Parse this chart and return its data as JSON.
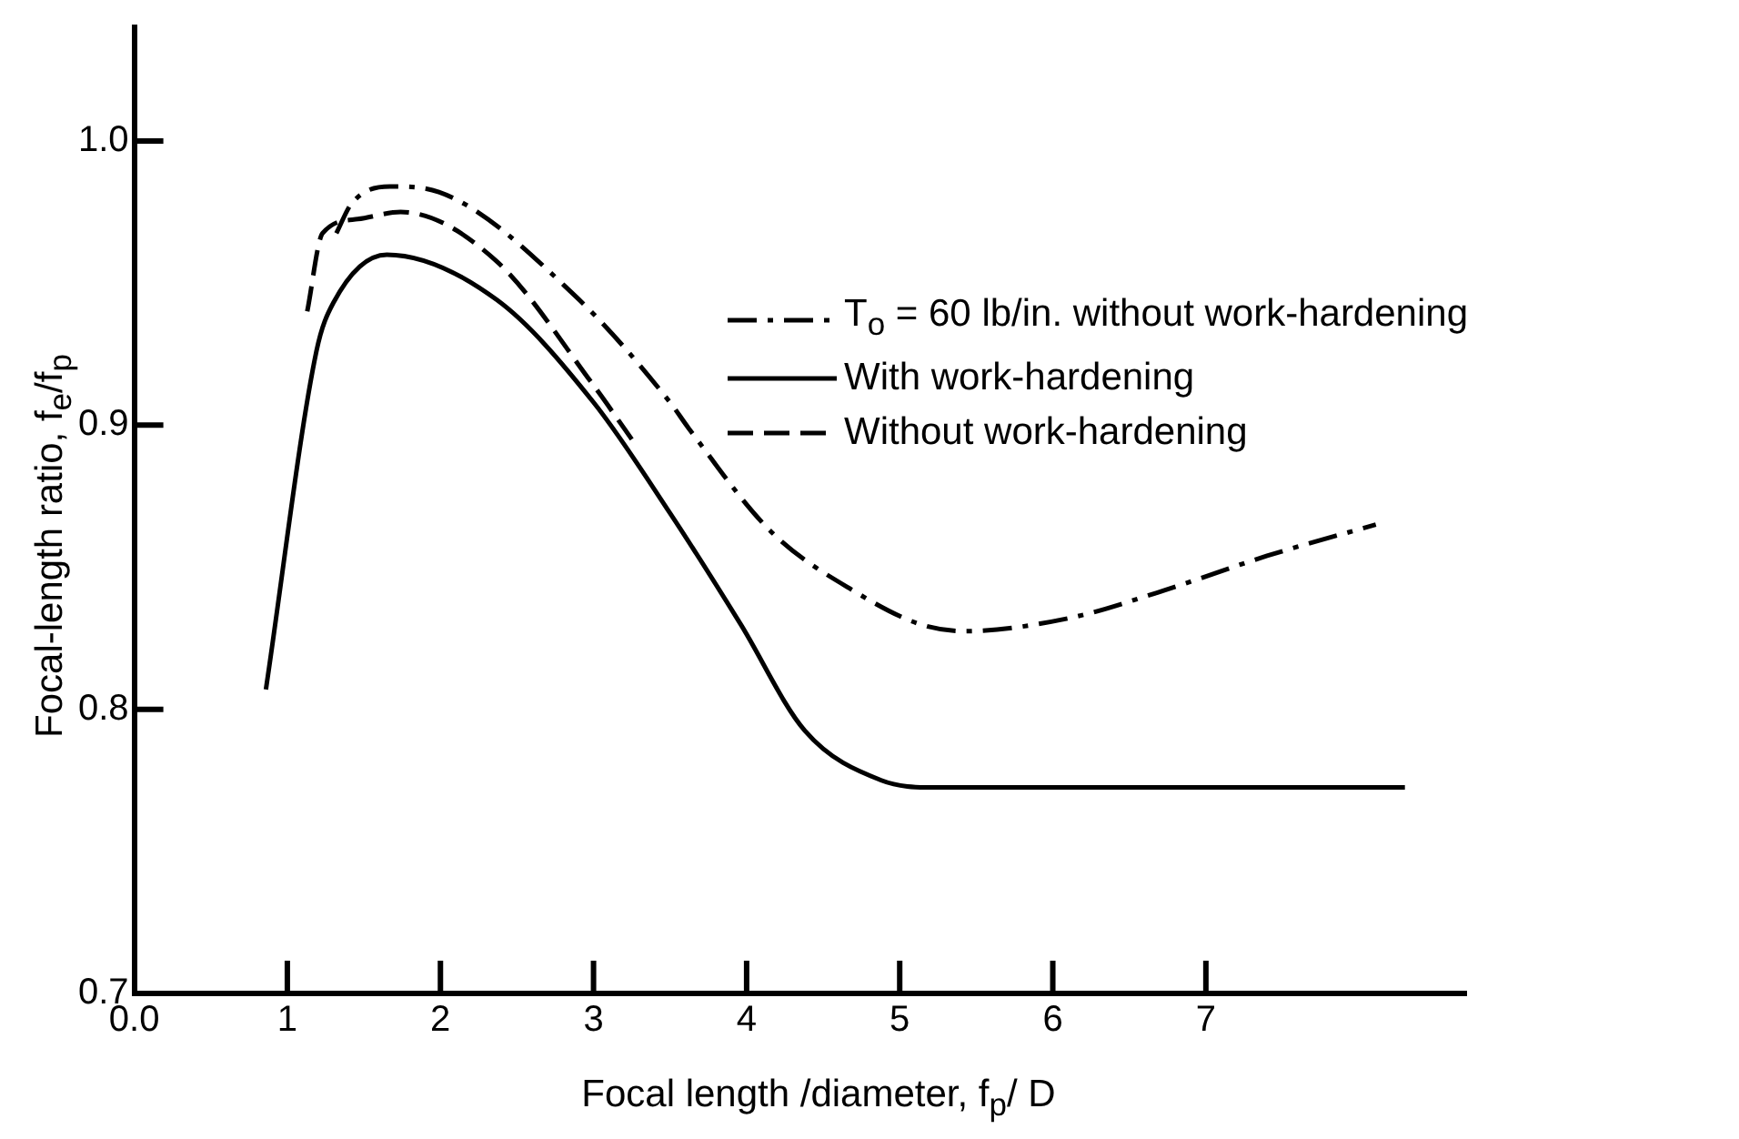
{
  "chart_data": {
    "type": "line",
    "xlabel": "Focal length /diameter,  f$_{p}$/ D",
    "ylabel": "Focal-length ratio, f$_{e}$/f$_{p}$",
    "xlim": [
      0,
      8.7
    ],
    "ylim": [
      0.7,
      1.04
    ],
    "xticks": [
      {
        "value": 0,
        "label": "0.0"
      },
      1,
      2,
      3,
      4,
      5,
      6,
      7
    ],
    "yticks": [
      0.7,
      0.8,
      0.9,
      {
        "value": 1,
        "label": "1.0"
      }
    ],
    "grid": false,
    "legend": "top right",
    "marker": "none",
    "series": [
      {
        "name": "T$_{o}$ = 60 lb/in. without work-hardening",
        "color": "#000000",
        "line_style": "dashdot",
        "x": [
          1.32,
          1.42,
          1.67,
          1.99,
          2.87,
          3.5,
          3.62,
          4.16,
          4.72,
          5.13,
          5.42,
          6.1,
          6.68,
          7.4,
          8.11
        ],
        "values": [
          0.9675,
          0.978,
          0.984,
          0.982,
          0.946,
          0.908,
          0.899,
          0.8625,
          0.841,
          0.83,
          0.8275,
          0.832,
          0.841,
          0.854,
          0.865
        ]
      },
      {
        "name": "With work-hardening",
        "color": "#000000",
        "line_style": "solid",
        "x": [
          0.86,
          1.19,
          1.3,
          1.65,
          2.37,
          3.0,
          3.5,
          3.96,
          4.38,
          4.88,
          5.22,
          6.0,
          7.0,
          8.3
        ],
        "values": [
          0.807,
          0.926,
          0.943,
          0.96,
          0.944,
          0.908,
          0.869,
          0.83,
          0.7925,
          0.775,
          0.7725,
          0.7725,
          0.7725,
          0.7725
        ]
      },
      {
        "name": "Without work-hardening",
        "color": "#000000",
        "line_style": "dashed",
        "x": [
          1.13,
          1.23,
          1.46,
          1.74,
          2.36,
          3.0,
          3.25
        ],
        "values": [
          0.94,
          0.9675,
          0.9725,
          0.975,
          0.958,
          0.914,
          0.895
        ]
      }
    ]
  }
}
